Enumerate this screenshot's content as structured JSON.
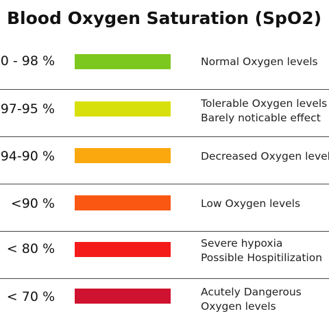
{
  "title": "Blood Oxygen Saturation (SpO2)",
  "levels": [
    {
      "range": "0 - 98 %",
      "color": "#7dc81e",
      "desc1": "Normal Oxygen levels",
      "desc2": ""
    },
    {
      "range": "97-95 %",
      "color": "#d7e00a",
      "desc1": "Tolerable Oxygen levels",
      "desc2": "Barely noticable effect"
    },
    {
      "range": "94-90 %",
      "color": "#fba80e",
      "desc1": "Decreased Oxygen levels",
      "desc2": ""
    },
    {
      "range": "<90 %",
      "color": "#fa5712",
      "desc1": "Low Oxygen levels",
      "desc2": ""
    },
    {
      "range": "< 80  %",
      "color": "#f51a1a",
      "desc1": "Severe hypoxia",
      "desc2": "Possible Hospitilization"
    },
    {
      "range": "< 70 %",
      "color": "#cf1230",
      "desc1": "Acutely Dangerous",
      "desc2": "Oxygen levels"
    }
  ]
}
